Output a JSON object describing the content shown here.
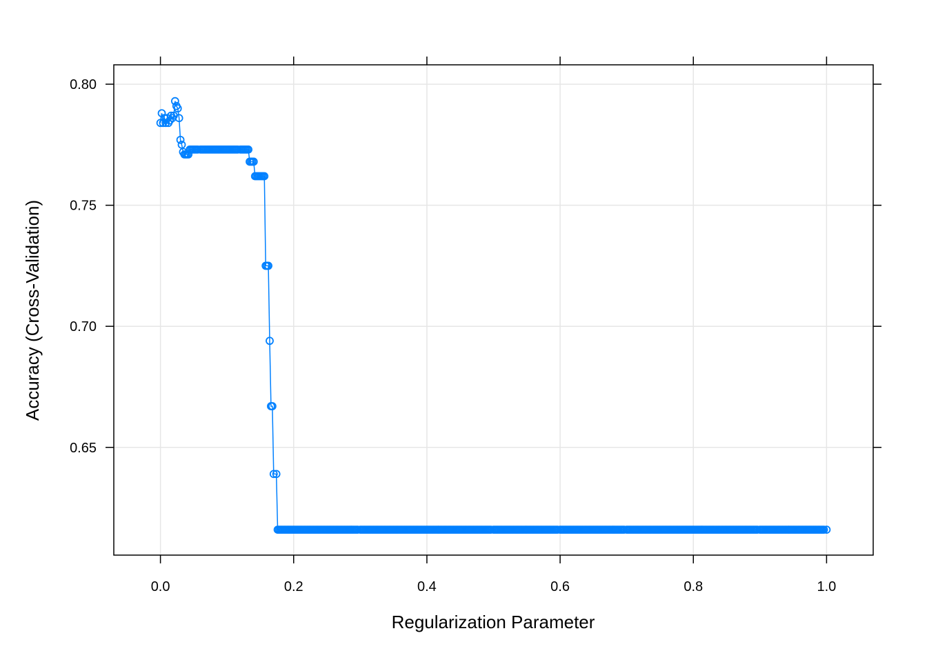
{
  "chart_data": {
    "type": "line",
    "title": "",
    "xlabel": "Regularization Parameter",
    "ylabel": "Accuracy (Cross-Validation)",
    "xlim": [
      -0.07,
      1.07
    ],
    "ylim": [
      0.6055,
      0.808
    ],
    "xticks": [
      0.0,
      0.2,
      0.4,
      0.6,
      0.8,
      1.0
    ],
    "xtick_labels": [
      "0.0",
      "0.2",
      "0.4",
      "0.6",
      "0.8",
      "1.0"
    ],
    "yticks": [
      0.65,
      0.7,
      0.75,
      0.8
    ],
    "ytick_labels": [
      "0.65",
      "0.70",
      "0.75",
      "0.80"
    ],
    "grid": true,
    "legend": "none",
    "series_color": "#0080ff",
    "markers": "open-circle",
    "series": [
      {
        "points": [
          [
            0.0,
            0.784
          ],
          [
            0.002,
            0.788
          ],
          [
            0.004,
            0.784
          ],
          [
            0.006,
            0.786
          ],
          [
            0.008,
            0.784
          ],
          [
            0.01,
            0.786
          ],
          [
            0.012,
            0.784
          ],
          [
            0.014,
            0.785
          ],
          [
            0.016,
            0.787
          ],
          [
            0.018,
            0.786
          ],
          [
            0.02,
            0.787
          ],
          [
            0.022,
            0.793
          ],
          [
            0.024,
            0.791
          ],
          [
            0.026,
            0.79
          ],
          [
            0.028,
            0.786
          ],
          [
            0.03,
            0.777
          ],
          [
            0.032,
            0.775
          ],
          [
            0.034,
            0.772
          ],
          [
            0.036,
            0.771
          ],
          [
            0.038,
            0.771
          ],
          [
            0.04,
            0.771
          ],
          [
            0.042,
            0.771
          ],
          [
            0.044,
            0.773
          ],
          [
            0.048,
            0.773
          ],
          [
            0.06,
            0.773
          ],
          [
            0.08,
            0.773
          ],
          [
            0.1,
            0.773
          ],
          [
            0.12,
            0.773
          ],
          [
            0.132,
            0.773
          ],
          [
            0.134,
            0.768
          ],
          [
            0.136,
            0.768
          ],
          [
            0.14,
            0.768
          ],
          [
            0.142,
            0.762
          ],
          [
            0.146,
            0.762
          ],
          [
            0.15,
            0.762
          ],
          [
            0.156,
            0.762
          ],
          [
            0.158,
            0.725
          ],
          [
            0.162,
            0.725
          ],
          [
            0.164,
            0.694
          ],
          [
            0.166,
            0.667
          ],
          [
            0.168,
            0.667
          ],
          [
            0.17,
            0.639
          ],
          [
            0.174,
            0.639
          ],
          [
            0.176,
            0.616
          ],
          [
            0.2,
            0.616
          ],
          [
            0.3,
            0.616
          ],
          [
            0.4,
            0.616
          ],
          [
            0.5,
            0.616
          ],
          [
            0.6,
            0.616
          ],
          [
            0.7,
            0.616
          ],
          [
            0.8,
            0.616
          ],
          [
            0.9,
            0.616
          ],
          [
            1.0,
            0.616
          ]
        ]
      }
    ]
  }
}
